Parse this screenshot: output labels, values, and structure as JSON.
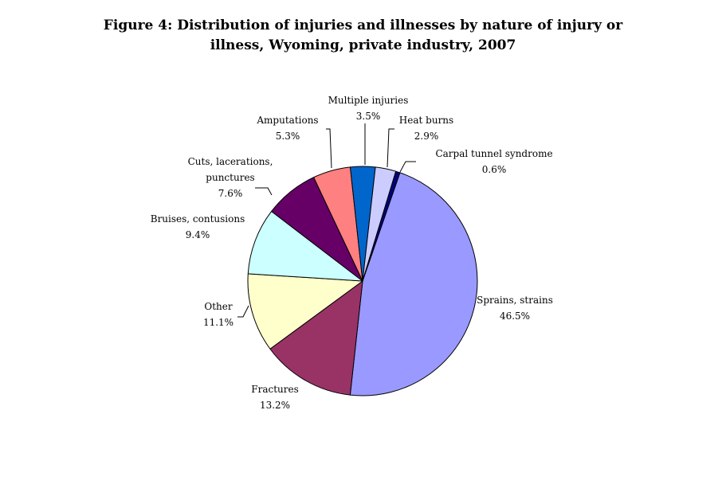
{
  "chart_data": {
    "type": "pie",
    "title_lines": [
      "Figure 4: Distribution of injuries and illnesses by nature of injury or",
      "illness, Wyoming, private industry, 2007"
    ],
    "slices": [
      {
        "label": "Sprains, strains",
        "pct": "46.5%",
        "value": 46.5,
        "color": "#9999ff"
      },
      {
        "label": "Fractures",
        "pct": "13.2%",
        "value": 13.2,
        "color": "#993366"
      },
      {
        "label": "Other",
        "pct": "11.1%",
        "value": 11.1,
        "color": "#ffffcc"
      },
      {
        "label": "Bruises, contusions",
        "pct": "9.4%",
        "value": 9.4,
        "color": "#ccffff"
      },
      {
        "label": "Cuts, lacerations,|punctures",
        "pct": "7.6%",
        "value": 7.6,
        "color": "#660066"
      },
      {
        "label": "Amputations",
        "pct": "5.3%",
        "value": 5.3,
        "color": "#ff8080"
      },
      {
        "label": "Multiple injuries",
        "pct": "3.5%",
        "value": 3.5,
        "color": "#0066cc"
      },
      {
        "label": "Heat burns",
        "pct": "2.9%",
        "value": 2.9,
        "color": "#ccccff"
      },
      {
        "label": "Carpal tunnel syndrome",
        "pct": "0.6%",
        "value": 0.6,
        "color": "#000080"
      }
    ]
  }
}
